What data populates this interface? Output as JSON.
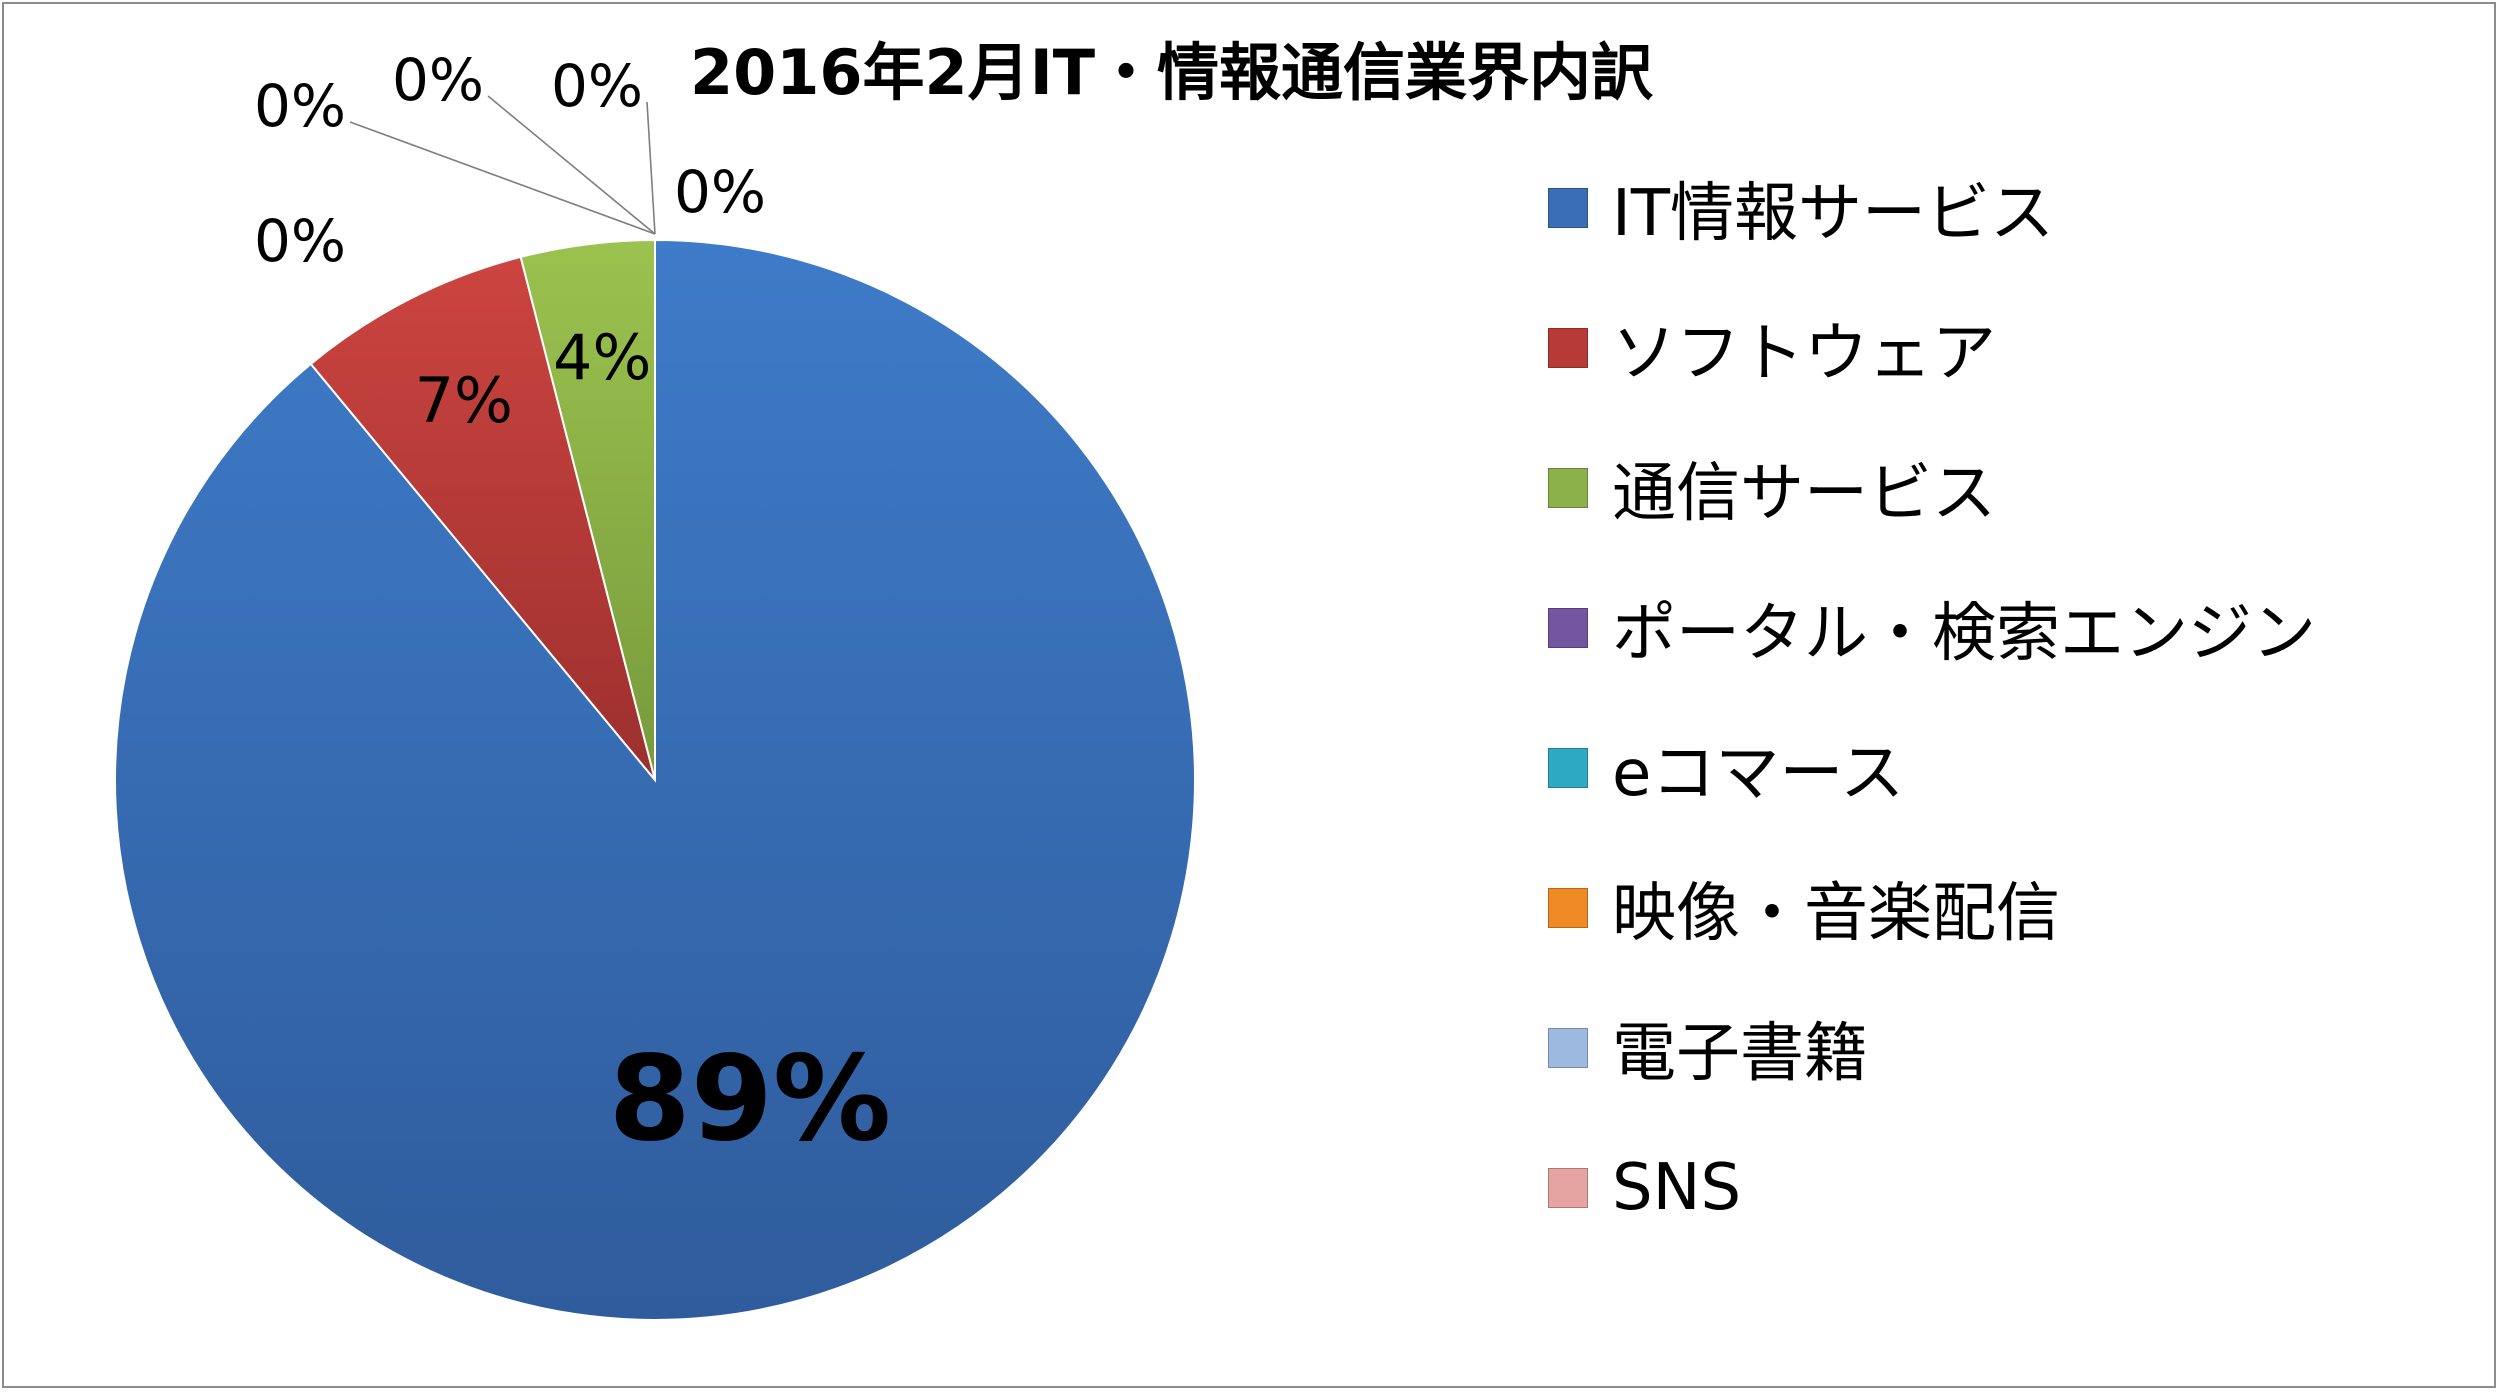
{
  "chart_data": {
    "type": "pie",
    "title": "2016年2月IT・情報通信業界内訳",
    "unit": "%",
    "legend_position": "right",
    "slices": [
      {
        "name": "IT情報サービス",
        "value": 89,
        "label": "89%",
        "color": "#3a6fb8"
      },
      {
        "name": "ソフトウェア",
        "value": 7,
        "label": "7%",
        "color": "#b83a37"
      },
      {
        "name": "通信サービス",
        "value": 4,
        "label": "4%",
        "color": "#8db14a"
      },
      {
        "name": "ポータル・検索エンジン",
        "value": 0,
        "label": "0%",
        "color": "#7355a0"
      },
      {
        "name": "eコマース",
        "value": 0,
        "label": "0%",
        "color": "#2ea9c4"
      },
      {
        "name": "映像・音楽配信",
        "value": 0,
        "label": "0%",
        "color": "#f08a24"
      },
      {
        "name": "電子書籍",
        "value": 0,
        "label": "0%",
        "color": "#9eb9e0"
      },
      {
        "name": "SNS",
        "value": 0,
        "label": "0%",
        "color": "#e5a3a1"
      }
    ]
  }
}
